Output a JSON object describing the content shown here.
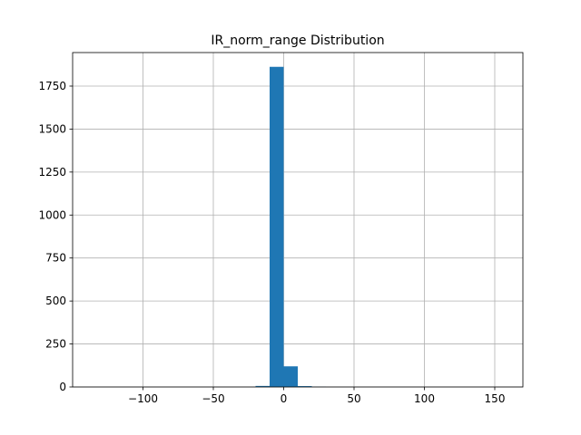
{
  "chart_data": {
    "type": "bar",
    "title": "IR_norm_range Distribution",
    "xlabel": "",
    "ylabel": "",
    "xlim": [
      -150,
      170
    ],
    "ylim": [
      0,
      1945
    ],
    "grid": true,
    "bar_color": "#1f77b4",
    "x_ticks": [
      -100,
      -50,
      0,
      50,
      100,
      150
    ],
    "x_tick_labels": [
      "−100",
      "−50",
      "0",
      "50",
      "100",
      "150"
    ],
    "y_ticks": [
      0,
      250,
      500,
      750,
      1000,
      1250,
      1500,
      1750
    ],
    "y_tick_labels": [
      "0",
      "250",
      "500",
      "750",
      "1000",
      "1250",
      "1500",
      "1750"
    ],
    "bins": [
      {
        "start": -20,
        "end": -10,
        "count": 6
      },
      {
        "start": -10,
        "end": 0,
        "count": 1862
      },
      {
        "start": 0,
        "end": 10,
        "count": 120
      },
      {
        "start": 10,
        "end": 20,
        "count": 5
      },
      {
        "start": 20,
        "end": 30,
        "count": 1
      }
    ]
  }
}
